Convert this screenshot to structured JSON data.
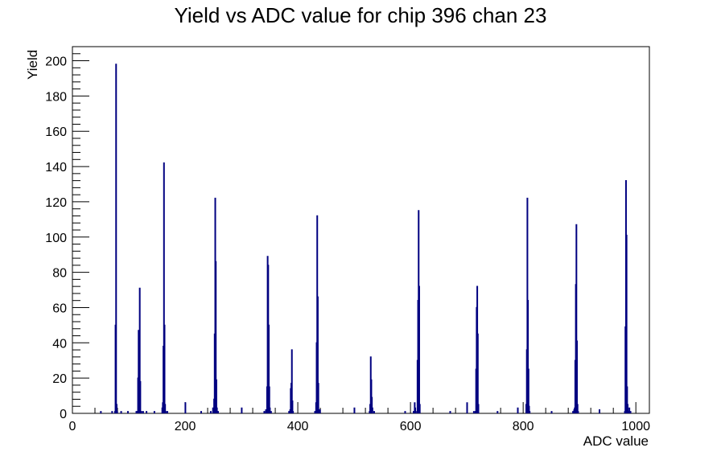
{
  "chart_data": {
    "type": "histogram",
    "title": "Yield vs ADC value for chip 396 chan 23",
    "xlabel": "ADC value",
    "ylabel": "Yield",
    "xlim": [
      0,
      1024
    ],
    "ylim": [
      0,
      208
    ],
    "x_ticks": [
      0,
      200,
      400,
      600,
      800,
      1000
    ],
    "y_ticks": [
      0,
      20,
      40,
      60,
      80,
      100,
      120,
      140,
      160,
      180,
      200
    ],
    "grid": false,
    "legend": "none",
    "line_color": "#000080",
    "bins": [
      [
        50,
        1
      ],
      [
        70,
        1
      ],
      [
        75,
        1
      ],
      [
        76,
        50
      ],
      [
        77,
        198
      ],
      [
        78,
        5
      ],
      [
        79,
        1
      ],
      [
        86,
        1
      ],
      [
        98,
        1
      ],
      [
        113,
        1
      ],
      [
        115,
        1
      ],
      [
        116,
        20
      ],
      [
        117,
        47
      ],
      [
        118,
        27
      ],
      [
        119,
        71
      ],
      [
        120,
        18
      ],
      [
        122,
        1
      ],
      [
        125,
        1
      ],
      [
        131,
        1
      ],
      [
        145,
        1
      ],
      [
        159,
        3
      ],
      [
        160,
        6
      ],
      [
        161,
        38
      ],
      [
        162,
        142
      ],
      [
        163,
        50
      ],
      [
        164,
        5
      ],
      [
        165,
        1
      ],
      [
        168,
        1
      ],
      [
        200,
        6
      ],
      [
        228,
        1
      ],
      [
        245,
        1
      ],
      [
        249,
        3
      ],
      [
        251,
        8
      ],
      [
        252,
        45
      ],
      [
        253,
        122
      ],
      [
        254,
        86
      ],
      [
        255,
        19
      ],
      [
        256,
        3
      ],
      [
        258,
        1
      ],
      [
        300,
        3
      ],
      [
        340,
        1
      ],
      [
        343,
        2
      ],
      [
        345,
        15
      ],
      [
        346,
        89
      ],
      [
        347,
        84
      ],
      [
        348,
        50
      ],
      [
        349,
        15
      ],
      [
        350,
        3
      ],
      [
        352,
        1
      ],
      [
        384,
        1
      ],
      [
        386,
        2
      ],
      [
        387,
        14
      ],
      [
        388,
        17
      ],
      [
        389,
        36
      ],
      [
        390,
        7
      ],
      [
        391,
        1
      ],
      [
        430,
        1
      ],
      [
        432,
        6
      ],
      [
        433,
        40
      ],
      [
        434,
        112
      ],
      [
        435,
        66
      ],
      [
        436,
        17
      ],
      [
        437,
        2
      ],
      [
        439,
        2
      ],
      [
        500,
        3
      ],
      [
        527,
        1
      ],
      [
        528,
        5
      ],
      [
        529,
        32
      ],
      [
        530,
        19
      ],
      [
        531,
        9
      ],
      [
        532,
        3
      ],
      [
        535,
        1
      ],
      [
        590,
        1
      ],
      [
        605,
        1
      ],
      [
        607,
        6
      ],
      [
        608,
        3
      ],
      [
        611,
        1
      ],
      [
        612,
        30
      ],
      [
        613,
        64
      ],
      [
        614,
        115
      ],
      [
        615,
        72
      ],
      [
        616,
        5
      ],
      [
        670,
        1
      ],
      [
        700,
        6
      ],
      [
        712,
        1
      ],
      [
        715,
        1
      ],
      [
        716,
        25
      ],
      [
        717,
        60
      ],
      [
        718,
        72
      ],
      [
        719,
        45
      ],
      [
        720,
        5
      ],
      [
        754,
        1
      ],
      [
        790,
        3
      ],
      [
        805,
        5
      ],
      [
        806,
        36
      ],
      [
        807,
        122
      ],
      [
        808,
        64
      ],
      [
        809,
        25
      ],
      [
        810,
        4
      ],
      [
        811,
        1
      ],
      [
        850,
        1
      ],
      [
        888,
        1
      ],
      [
        890,
        2
      ],
      [
        891,
        3
      ],
      [
        892,
        30
      ],
      [
        893,
        73
      ],
      [
        894,
        107
      ],
      [
        895,
        41
      ],
      [
        896,
        5
      ],
      [
        897,
        1
      ],
      [
        935,
        2
      ],
      [
        980,
        1
      ],
      [
        981,
        49
      ],
      [
        982,
        132
      ],
      [
        983,
        101
      ],
      [
        984,
        15
      ],
      [
        985,
        5
      ],
      [
        986,
        1
      ],
      [
        988,
        3
      ],
      [
        990,
        1
      ]
    ]
  }
}
